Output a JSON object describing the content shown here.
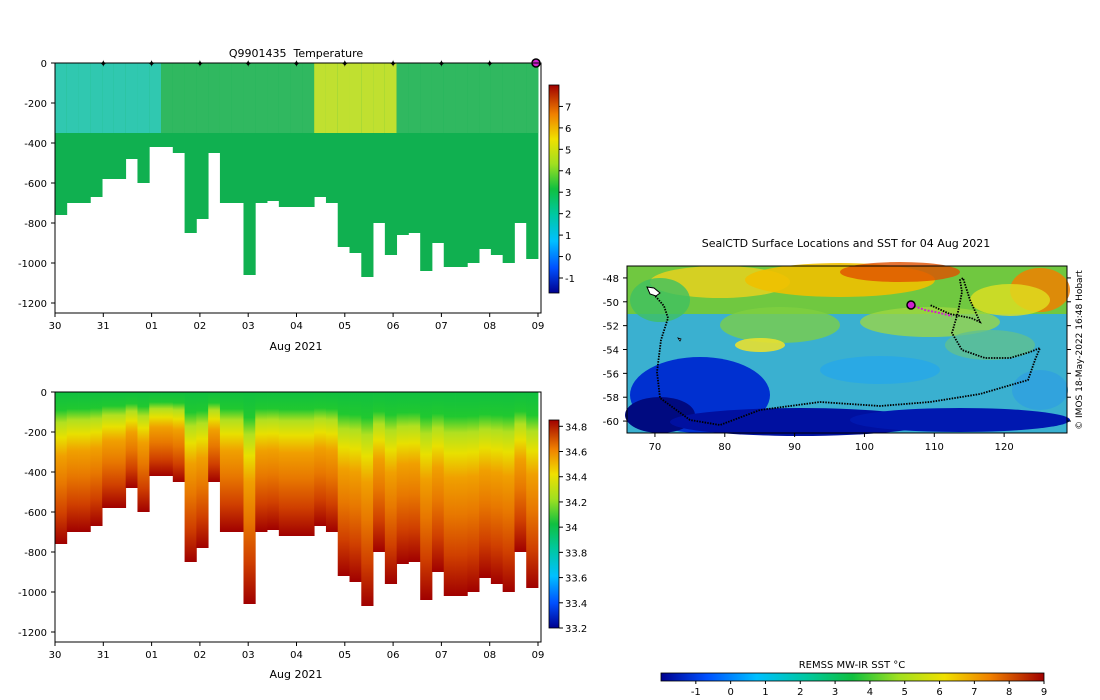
{
  "chart_data": [
    {
      "type": "heatmap",
      "title": "Q9901435  Temperature",
      "xlabel": "Aug 2021",
      "ylabel": "",
      "x_ticks": [
        "30",
        "31",
        "01",
        "02",
        "03",
        "04",
        "05",
        "06",
        "07",
        "08",
        "09"
      ],
      "y_ticks": [
        "0",
        "-200",
        "-400",
        "-600",
        "-800",
        "-1000",
        "-1200"
      ],
      "ylim": [
        -1250,
        0
      ],
      "colorbar": {
        "min": -1.7,
        "max": 8,
        "ticks": [
          "-1",
          "0",
          "1",
          "2",
          "3",
          "4",
          "5",
          "6",
          "7"
        ]
      },
      "marker_days": [
        "31",
        "01",
        "02",
        "03",
        "04",
        "05",
        "06",
        "07",
        "08"
      ],
      "approx_values": {
        "surface_temperature_range": [
          2.0,
          4.5
        ],
        "deep_temperature": 2.3
      }
    },
    {
      "type": "heatmap",
      "title": "",
      "xlabel": "Aug 2021",
      "ylabel": "",
      "x_ticks": [
        "30",
        "31",
        "01",
        "02",
        "03",
        "04",
        "05",
        "06",
        "07",
        "08",
        "09"
      ],
      "y_ticks": [
        "0",
        "-200",
        "-400",
        "-600",
        "-800",
        "-1000",
        "-1200"
      ],
      "ylim": [
        -1250,
        0
      ],
      "colorbar": {
        "min": 33.2,
        "max": 34.85,
        "ticks": [
          "34.8",
          "34.6",
          "34.4",
          "34.2",
          "34",
          "33.8",
          "33.6",
          "33.4",
          "33.2"
        ]
      },
      "approx_values": {
        "surface_salinity": 33.9,
        "deep_salinity": 34.75
      }
    },
    {
      "type": "map",
      "title": "SealCTD Surface Locations and SST for 04 Aug 2021",
      "x_ticks": [
        "70",
        "80",
        "90",
        "100",
        "110",
        "120"
      ],
      "y_ticks": [
        "-48",
        "-50",
        "-52",
        "-54",
        "-56",
        "-58",
        "-60"
      ],
      "xlim": [
        66,
        129
      ],
      "ylim": [
        -61,
        -47
      ],
      "current_position": {
        "lon": 107,
        "lat": -50.2
      },
      "colorbar": {
        "label": "REMSS MW-IR SST °C",
        "min": -2,
        "max": 9,
        "ticks": [
          "-1",
          "0",
          "1",
          "2",
          "3",
          "4",
          "5",
          "6",
          "7",
          "8",
          "9"
        ]
      }
    }
  ],
  "watermark": "© IMOS 18-May-2022 16:48 Hobart"
}
